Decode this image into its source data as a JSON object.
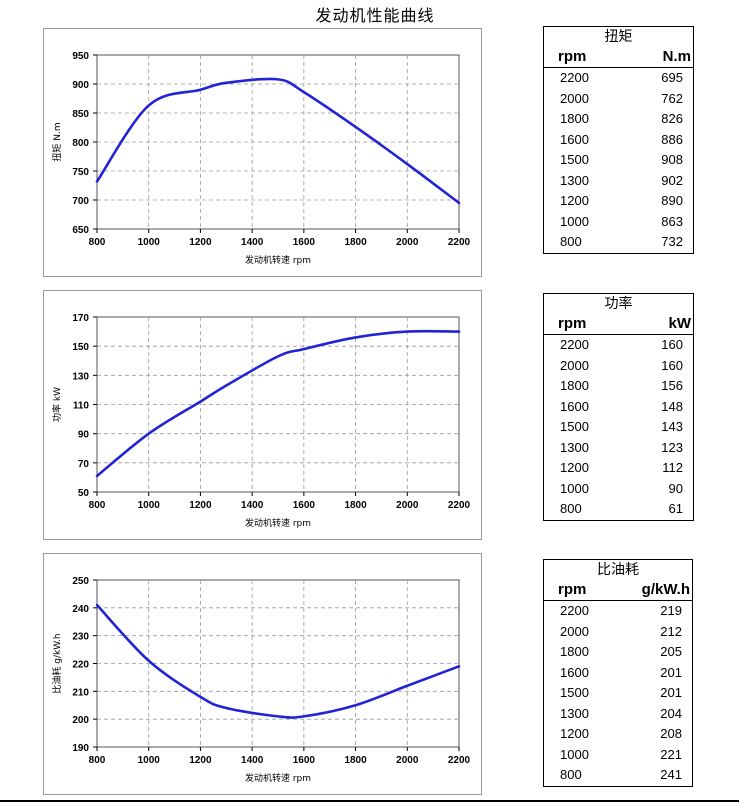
{
  "page_title": "发动机性能曲线",
  "colors": {
    "series": "#2323d6",
    "grid": "#9a9a9a",
    "frame": "#9a9a9a"
  },
  "chart_data": [
    {
      "type": "line",
      "x": [
        800,
        1000,
        1200,
        1300,
        1500,
        1600,
        1800,
        2000,
        2200
      ],
      "series": [
        {
          "values": [
            732,
            863,
            890,
            902,
            908,
            886,
            826,
            762,
            695
          ]
        }
      ],
      "xlabel": "发动机转速  rpm",
      "ylabel": "扭矩 N.m",
      "xlim": [
        800,
        2200
      ],
      "ylim": [
        650,
        950
      ],
      "xticks": [
        800,
        1000,
        1200,
        1400,
        1600,
        1800,
        2000,
        2200
      ],
      "yticks": [
        650,
        700,
        750,
        800,
        850,
        900,
        950
      ],
      "grid": true
    },
    {
      "type": "line",
      "x": [
        800,
        1000,
        1200,
        1300,
        1500,
        1600,
        1800,
        2000,
        2200
      ],
      "series": [
        {
          "values": [
            61,
            90,
            112,
            123,
            143,
            148,
            156,
            160,
            160
          ]
        }
      ],
      "xlabel": "发动机转速 rpm",
      "ylabel": "功率 kW",
      "xlim": [
        800,
        2200
      ],
      "ylim": [
        50,
        170
      ],
      "xticks": [
        800,
        1000,
        1200,
        1400,
        1600,
        1800,
        2000,
        2200
      ],
      "yticks": [
        50,
        70,
        90,
        110,
        130,
        150,
        170
      ],
      "grid": true
    },
    {
      "type": "line",
      "x": [
        800,
        1000,
        1200,
        1300,
        1500,
        1600,
        1800,
        2000,
        2200
      ],
      "series": [
        {
          "values": [
            241,
            221,
            208,
            204,
            201,
            201,
            205,
            212,
            219
          ]
        }
      ],
      "xlabel": "发动机转速 rpm",
      "ylabel": "比油耗 g/kW.h",
      "xlim": [
        800,
        2200
      ],
      "ylim": [
        190,
        250
      ],
      "xticks": [
        800,
        1000,
        1200,
        1400,
        1600,
        1800,
        2000,
        2200
      ],
      "yticks": [
        190,
        200,
        210,
        220,
        230,
        240,
        250
      ],
      "grid": true
    }
  ],
  "tables": [
    {
      "title": "扭矩",
      "col1": "rpm",
      "col2": "N.m",
      "rows": [
        [
          "2200",
          "695"
        ],
        [
          "2000",
          "762"
        ],
        [
          "1800",
          "826"
        ],
        [
          "1600",
          "886"
        ],
        [
          "1500",
          "908"
        ],
        [
          "1300",
          "902"
        ],
        [
          "1200",
          "890"
        ],
        [
          "1000",
          "863"
        ],
        [
          "800",
          "732"
        ]
      ]
    },
    {
      "title": "功率",
      "col1": "rpm",
      "col2": "kW",
      "rows": [
        [
          "2200",
          "160"
        ],
        [
          "2000",
          "160"
        ],
        [
          "1800",
          "156"
        ],
        [
          "1600",
          "148"
        ],
        [
          "1500",
          "143"
        ],
        [
          "1300",
          "123"
        ],
        [
          "1200",
          "112"
        ],
        [
          "1000",
          "90"
        ],
        [
          "800",
          "61"
        ]
      ]
    },
    {
      "title": "比油耗",
      "col1": "rpm",
      "col2": "g/kW.h",
      "rows": [
        [
          "2200",
          "219"
        ],
        [
          "2000",
          "212"
        ],
        [
          "1800",
          "205"
        ],
        [
          "1600",
          "201"
        ],
        [
          "1500",
          "201"
        ],
        [
          "1300",
          "204"
        ],
        [
          "1200",
          "208"
        ],
        [
          "1000",
          "221"
        ],
        [
          "800",
          "241"
        ]
      ]
    }
  ]
}
